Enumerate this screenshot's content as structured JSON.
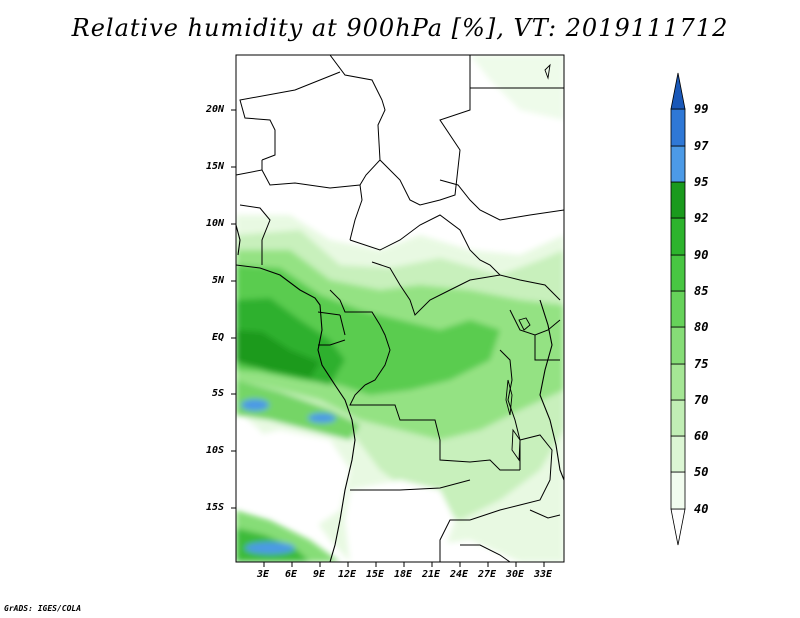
{
  "title": "Relative humidity at 900hPa [%], VT: 2019111712",
  "credit": "GrADS: IGES/COLA",
  "map": {
    "lat_labels": [
      "20N",
      "15N",
      "10N",
      "5N",
      "EQ",
      "5S",
      "10S",
      "15S"
    ],
    "lon_labels": [
      "3E",
      "6E",
      "9E",
      "12E",
      "15E",
      "18E",
      "21E",
      "24E",
      "27E",
      "30E",
      "33E"
    ]
  },
  "colorbar": {
    "levels": [
      "40",
      "50",
      "60",
      "70",
      "75",
      "80",
      "85",
      "90",
      "92",
      "95",
      "97",
      "99"
    ],
    "colors": {
      "c40": "#f2fcef",
      "c50": "#dcf6d4",
      "c60": "#c1eeb5",
      "c70": "#a5e695",
      "c75": "#86dd77",
      "c80": "#66d25a",
      "c85": "#48c642",
      "c90": "#2db42d",
      "c92": "#1a9a1d",
      "c95": "#4c9ae6",
      "c97": "#2f78d6",
      "c99": "#1a58b8"
    }
  }
}
